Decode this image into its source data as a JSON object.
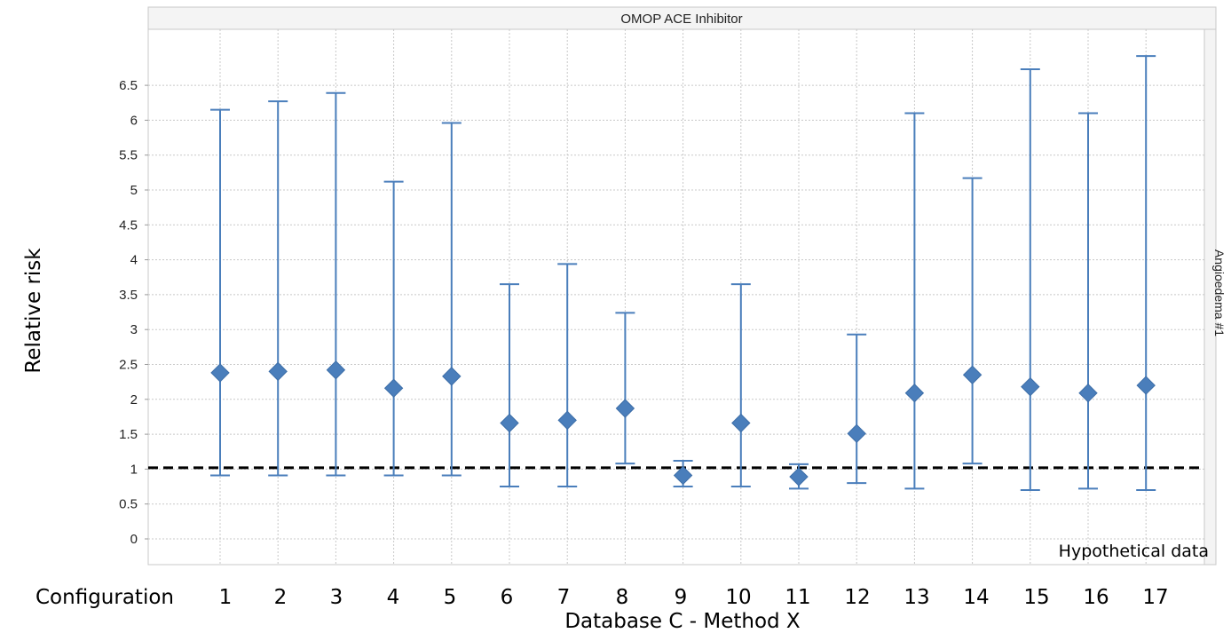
{
  "chart_data": {
    "type": "scatter",
    "title": "OMOP ACE Inhibitor",
    "xlabel": "Database C - Method X",
    "ylabel": "Relative risk",
    "x_prefix_label": "Configuration",
    "annotation": "Hypothetical data",
    "facet_label": "Angioedema #1",
    "categories": [
      "1",
      "2",
      "3",
      "4",
      "5",
      "6",
      "7",
      "8",
      "9",
      "10",
      "11",
      "12",
      "13",
      "14",
      "15",
      "16",
      "17"
    ],
    "yticks": [
      "0",
      "0.5",
      "1",
      "1.5",
      "2",
      "2.5",
      "3",
      "3.5",
      "4",
      "4.5",
      "5",
      "5.5",
      "6",
      "6.5"
    ],
    "ylim": [
      -0.3,
      7.3
    ],
    "grid": true,
    "reference_line": 1.02,
    "series": [
      {
        "estimate": [
          2.38,
          2.4,
          2.42,
          2.16,
          2.33,
          1.66,
          1.7,
          1.87,
          0.91,
          1.66,
          0.89,
          1.51,
          2.09,
          2.35,
          2.18,
          2.09,
          2.2
        ],
        "lower": [
          0.91,
          0.91,
          0.91,
          0.91,
          0.91,
          0.75,
          0.75,
          1.08,
          0.75,
          0.75,
          0.72,
          0.8,
          0.72,
          1.08,
          0.7,
          0.72,
          0.7
        ],
        "upper": [
          6.15,
          6.27,
          6.39,
          5.12,
          5.96,
          3.65,
          3.94,
          3.24,
          1.12,
          3.65,
          1.07,
          2.93,
          6.1,
          5.17,
          6.73,
          6.1,
          6.92
        ]
      }
    ],
    "colors": {
      "marker": "#4a7ebb",
      "error_bar": "#4a7ebb",
      "reference_line": "#000000",
      "grid": "#c8c8c8",
      "frame": "#c8c8c8"
    }
  }
}
